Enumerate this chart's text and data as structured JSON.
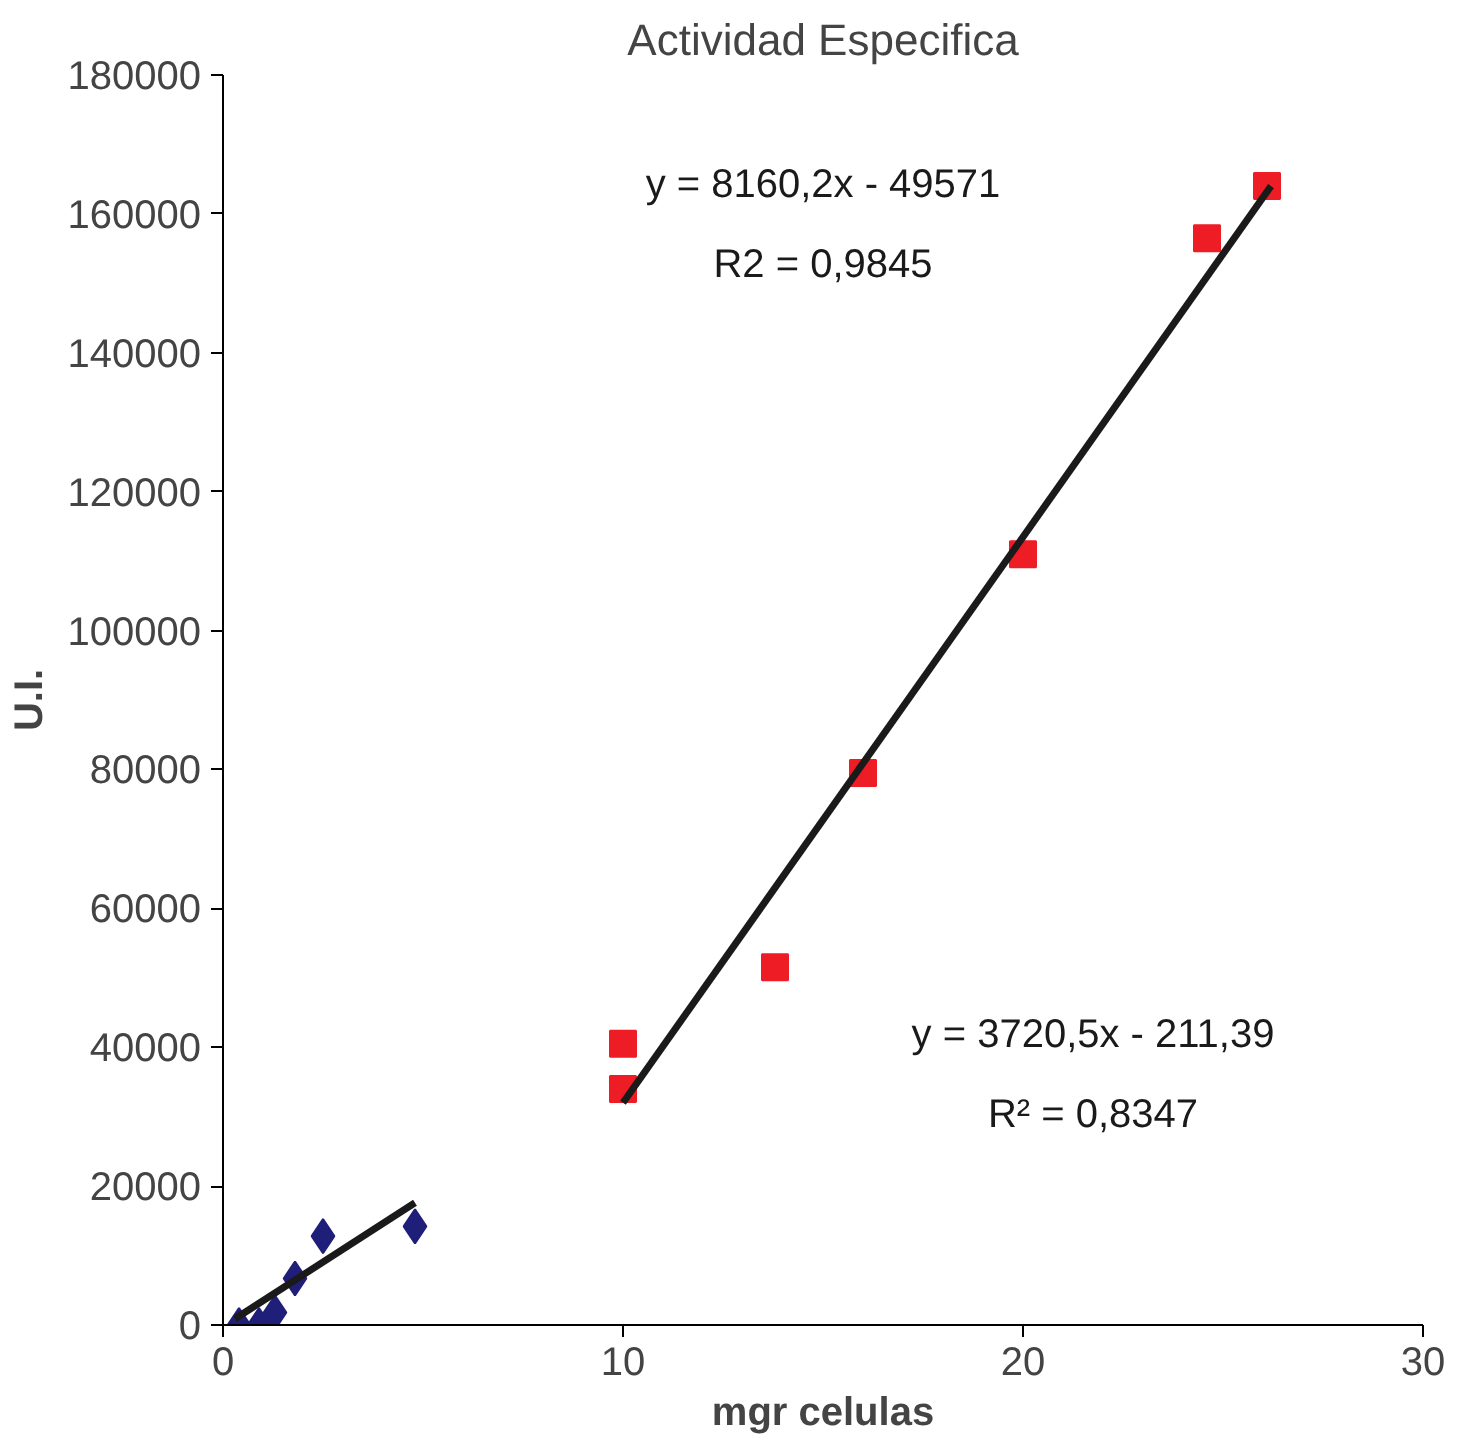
{
  "chart_data": {
    "type": "scatter",
    "title": "Actividad Especifica",
    "xlabel": "mgr celulas",
    "ylabel": "U.I.",
    "xlim": [
      0,
      30
    ],
    "xticks": [
      0,
      10,
      20,
      30
    ],
    "ylim": [
      0,
      180000
    ],
    "yticks": [
      0,
      20000,
      40000,
      60000,
      80000,
      100000,
      120000,
      140000,
      160000,
      180000
    ],
    "grid": false,
    "series": [
      {
        "marker": "diamond",
        "color": "#1f1f7a",
        "x": [
          0.4,
          0.9,
          1.3,
          1.8,
          2.5,
          4.8
        ],
        "values": [
          0,
          0,
          1800,
          6700,
          12800,
          14200
        ]
      },
      {
        "marker": "square",
        "color": "#ee1c25",
        "x": [
          10,
          10,
          13.8,
          16,
          20,
          24.6,
          26.1
        ],
        "values": [
          40500,
          34000,
          51500,
          79500,
          111000,
          156500,
          164000
        ]
      },
      {
        "type": "line",
        "color": "#1a1a1a",
        "x": [
          0.3,
          4.8
        ],
        "values": [
          900,
          17600
        ]
      },
      {
        "type": "line",
        "color": "#1a1a1a",
        "x": [
          10,
          26.2
        ],
        "values": [
          32000,
          164000
        ]
      }
    ],
    "annotations": [
      "y = 8160,2x - 49571",
      "R2 = 0,9845",
      "y = 3720,5x - 211,39",
      "R² = 0,8347"
    ]
  }
}
